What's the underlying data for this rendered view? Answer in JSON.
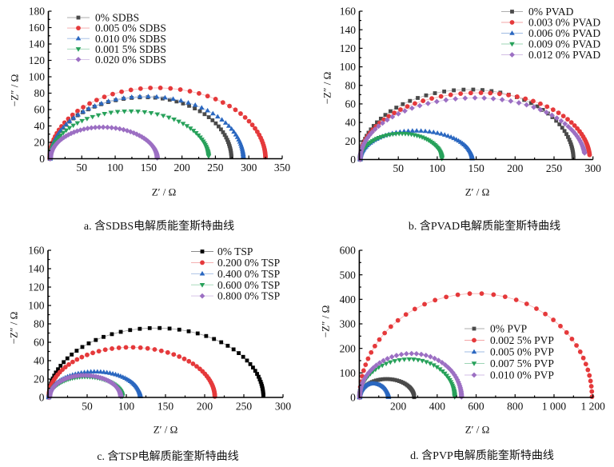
{
  "chart_data": [
    {
      "panel": "a",
      "type": "line",
      "title": "",
      "caption": "a. 含SDBS电解质能奎斯特曲线",
      "xlabel": "Z′ / Ω",
      "ylabel": "−Z″ / Ω",
      "xlim": [
        0,
        350
      ],
      "ylim": [
        0,
        180
      ],
      "xticks": [
        50,
        100,
        150,
        200,
        250,
        300,
        350
      ],
      "xtick_labels": [
        "50",
        "100",
        "150",
        "200",
        "250",
        "300",
        "350"
      ],
      "yticks": [
        0,
        20,
        40,
        60,
        80,
        100,
        120,
        140,
        160,
        180
      ],
      "ytick_labels": [
        "0",
        "20",
        "40",
        "60",
        "80",
        "100",
        "120",
        "140",
        "160",
        "180"
      ],
      "x_minor_step": 25,
      "y_minor_step": 10,
      "grid": false,
      "legend_position": "top-left",
      "series": [
        {
          "name": "0% SDBS",
          "color": "#4a4a4a",
          "marker": "square",
          "x_start": 2,
          "peak_x": 145,
          "peak_y": 75,
          "x_end": 274,
          "last_y": 2,
          "n_points": 62
        },
        {
          "name": "0.005 0% SDBS",
          "color": "#e5393b",
          "marker": "circle",
          "x_start": 2,
          "peak_x": 162,
          "peak_y": 86.5,
          "x_end": 325,
          "last_y": 2,
          "n_points": 58
        },
        {
          "name": "0.010 0% SDBS",
          "color": "#2a67c0",
          "marker": "triangle-up",
          "x_start": 3,
          "peak_x": 145,
          "peak_y": 76,
          "x_end": 292,
          "last_y": 2,
          "n_points": 62
        },
        {
          "name": "0.001 5% SDBS",
          "color": "#27a15a",
          "marker": "triangle-down",
          "x_start": 3,
          "peak_x": 122,
          "peak_y": 58,
          "x_end": 240,
          "last_y": 3,
          "n_points": 62
        },
        {
          "name": "0.020 0% SDBS",
          "color": "#9c6fc3",
          "marker": "diamond",
          "x_start": 3,
          "peak_x": 80,
          "peak_y": 38.5,
          "x_end": 163,
          "last_y": 1,
          "n_points": 70
        }
      ]
    },
    {
      "panel": "b",
      "type": "line",
      "title": "",
      "caption": "b. 含PVAD电解质能奎斯特曲线",
      "xlabel": "Z′ / Ω",
      "ylabel": "−Z″ / Ω",
      "xlim": [
        0,
        300
      ],
      "ylim": [
        0,
        160
      ],
      "xticks": [
        50,
        100,
        150,
        200,
        250,
        300
      ],
      "xtick_labels": [
        "50",
        "100",
        "150",
        "200",
        "250",
        "300"
      ],
      "yticks": [
        0,
        20,
        40,
        60,
        80,
        100,
        120,
        140,
        160
      ],
      "ytick_labels": [
        "0",
        "20",
        "40",
        "60",
        "80",
        "100",
        "120",
        "140",
        "160"
      ],
      "x_minor_step": 25,
      "y_minor_step": 10,
      "grid": false,
      "legend_position": "top-right",
      "series": [
        {
          "name": "0% PVAD",
          "color": "#4a4a4a",
          "marker": "square",
          "x_start": 1,
          "peak_x": 142,
          "peak_y": 75.5,
          "x_end": 275,
          "last_y": 2,
          "n_points": 60
        },
        {
          "name": "0.003 0% PVAD",
          "color": "#e5393b",
          "marker": "circle",
          "x_start": 1,
          "peak_x": 155,
          "peak_y": 72,
          "x_end": 296,
          "last_y": 5,
          "n_points": 62
        },
        {
          "name": "0.006 0% PVAD",
          "color": "#2a67c0",
          "marker": "triangle-up",
          "x_start": 1,
          "peak_x": 72,
          "peak_y": 31,
          "x_end": 145,
          "last_y": 1,
          "n_points": 70
        },
        {
          "name": "0.009 0% PVAD",
          "color": "#27a15a",
          "marker": "triangle-down",
          "x_start": 1,
          "peak_x": 54,
          "peak_y": 28,
          "x_end": 106,
          "last_y": 1,
          "n_points": 70
        },
        {
          "name": "0.012 0% PVAD",
          "color": "#9c6fc3",
          "marker": "diamond",
          "x_start": 1,
          "peak_x": 150,
          "peak_y": 66.5,
          "x_end": 290,
          "last_y": 7,
          "n_points": 62
        }
      ]
    },
    {
      "panel": "c",
      "type": "line",
      "title": "",
      "caption": "c. 含TSP电解质能奎斯特曲线",
      "xlabel": "Z′ / Ω",
      "ylabel": "−Z″ / Ω",
      "xlim": [
        0,
        300
      ],
      "ylim": [
        0,
        160
      ],
      "xticks": [
        50,
        100,
        150,
        200,
        250,
        300
      ],
      "xtick_labels": [
        "50",
        "100",
        "150",
        "200",
        "250",
        "300"
      ],
      "yticks": [
        0,
        20,
        40,
        60,
        80,
        100,
        120,
        140,
        160
      ],
      "ytick_labels": [
        "0",
        "20",
        "40",
        "60",
        "80",
        "100",
        "120",
        "140",
        "160"
      ],
      "x_minor_step": 25,
      "y_minor_step": 10,
      "grid": false,
      "legend_position": "top-right",
      "series": [
        {
          "name": "0% TSP",
          "color": "#000000",
          "marker": "square",
          "x_start": 1,
          "peak_x": 138,
          "peak_y": 75.5,
          "x_end": 275,
          "last_y": 2,
          "n_points": 58
        },
        {
          "name": "0.200 0% TSP",
          "color": "#e5393b",
          "marker": "circle",
          "x_start": 1,
          "peak_x": 105,
          "peak_y": 54.5,
          "x_end": 213,
          "last_y": 1,
          "n_points": 62
        },
        {
          "name": "0.400 0% TSP",
          "color": "#2a67c0",
          "marker": "triangle-up",
          "x_start": 1,
          "peak_x": 60,
          "peak_y": 28,
          "x_end": 118,
          "last_y": 1,
          "n_points": 75
        },
        {
          "name": "0.600 0% TSP",
          "color": "#27a15a",
          "marker": "triangle-down",
          "x_start": 2,
          "peak_x": 48,
          "peak_y": 22.5,
          "x_end": 95,
          "last_y": 1,
          "n_points": 75
        },
        {
          "name": "0.800 0% TSP",
          "color": "#9c6fc3",
          "marker": "diamond",
          "x_start": 2,
          "peak_x": 46,
          "peak_y": 24,
          "x_end": 93,
          "last_y": 1,
          "n_points": 75
        }
      ]
    },
    {
      "panel": "d",
      "type": "line",
      "title": "",
      "caption": "d. 含PVP电解质能奎斯特曲线",
      "xlabel": "Z′ / Ω",
      "ylabel": "−Z″ / Ω",
      "xlim": [
        0,
        1200
      ],
      "ylim": [
        0,
        600
      ],
      "xticks": [
        200,
        400,
        600,
        800,
        1000,
        1200
      ],
      "xtick_labels": [
        "200",
        "400",
        "600",
        "800",
        "1 000",
        "1 200"
      ],
      "yticks": [
        0,
        100,
        200,
        300,
        400,
        500,
        600
      ],
      "ytick_labels": [
        "0",
        "100",
        "200",
        "300",
        "400",
        "500",
        "600"
      ],
      "x_minor_step": 100,
      "y_minor_step": 50,
      "grid": false,
      "legend_position": "center-right",
      "series": [
        {
          "name": "0% PVP",
          "color": "#4a4a4a",
          "marker": "square",
          "x_start": 2,
          "peak_x": 140,
          "peak_y": 75,
          "x_end": 282,
          "last_y": 1,
          "n_points": 60
        },
        {
          "name": "0.002 5% PVP",
          "color": "#e5393b",
          "marker": "circle",
          "x_start": 2,
          "peak_x": 600,
          "peak_y": 424,
          "x_end": 1195,
          "last_y": 3,
          "n_points": 42
        },
        {
          "name": "0.005 0% PVP",
          "color": "#2a67c0",
          "marker": "triangle-up",
          "x_start": 2,
          "peak_x": 70,
          "peak_y": 57,
          "x_end": 150,
          "last_y": 1,
          "n_points": 60
        },
        {
          "name": "0.007 5% PVP",
          "color": "#27a15a",
          "marker": "triangle-down",
          "x_start": 2,
          "peak_x": 258,
          "peak_y": 156,
          "x_end": 490,
          "last_y": 2,
          "n_points": 55
        },
        {
          "name": "0.010 0% PVP",
          "color": "#9c6fc3",
          "marker": "diamond",
          "x_start": 2,
          "peak_x": 270,
          "peak_y": 179,
          "x_end": 525,
          "last_y": 2,
          "n_points": 55
        }
      ]
    }
  ]
}
